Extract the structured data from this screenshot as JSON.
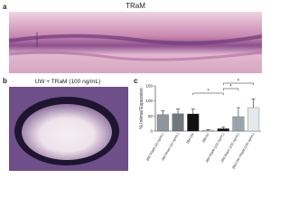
{
  "panels": [
    {
      "label": "a",
      "title": "TRaM"
    },
    {
      "label": "b",
      "title": "UW + TRaM (100 ng/mL)"
    }
  ],
  "chart_data": {
    "label": "c",
    "type": "bar",
    "y_label": "% Intimal Expansion",
    "categories": [
      "28d TRaM (10 ng/mL)",
      "28d Sham (10 ng/mL)",
      "28d UW",
      "28d Isc",
      "28d TRaM (100 ng/mL)",
      "28d Sham (100 ng/mL)",
      "28d UW+TRaM (100 ng/mL)"
    ],
    "values": [
      55,
      58,
      57,
      3,
      8,
      48,
      78
    ],
    "errors": [
      12,
      15,
      16,
      2,
      5,
      30,
      28
    ],
    "colors": [
      "#8c969c",
      "#6f787e",
      "#111111",
      "#d0d4d6",
      "#111111",
      "#9aa4aa",
      "#e4e9ec"
    ],
    "ylim": [
      0,
      150
    ],
    "yticks": [
      0,
      50,
      100,
      150
    ],
    "annotations": [
      "*",
      "*",
      "*"
    ]
  }
}
